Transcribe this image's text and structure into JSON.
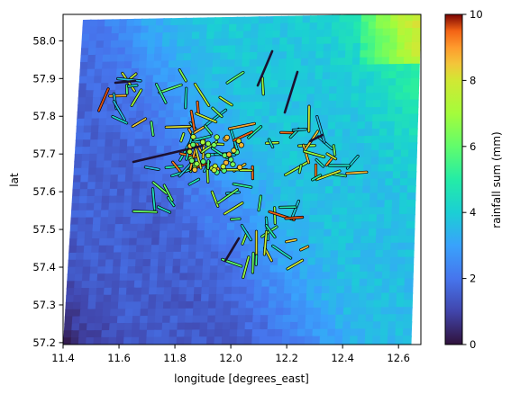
{
  "chart_data": {
    "type": "heatmap",
    "xlabel": "longitude [degrees_east]",
    "ylabel": "lat",
    "xlim": [
      11.4,
      12.68
    ],
    "ylim": [
      57.195,
      58.07
    ],
    "x_ticks": [
      "11.4",
      "11.6",
      "11.8",
      "12.0",
      "12.2",
      "12.4",
      "12.6"
    ],
    "y_ticks": [
      "57.2",
      "57.3",
      "57.4",
      "57.5",
      "57.6",
      "57.7",
      "57.8",
      "57.9",
      "58.0"
    ],
    "colorbar": {
      "label": "rainfall sum (mm)",
      "range": [
        0,
        10
      ],
      "ticks": [
        "0",
        "2",
        "4",
        "6",
        "8",
        "10"
      ],
      "colormap": "turbo"
    },
    "grid": false,
    "legend": "none"
  }
}
